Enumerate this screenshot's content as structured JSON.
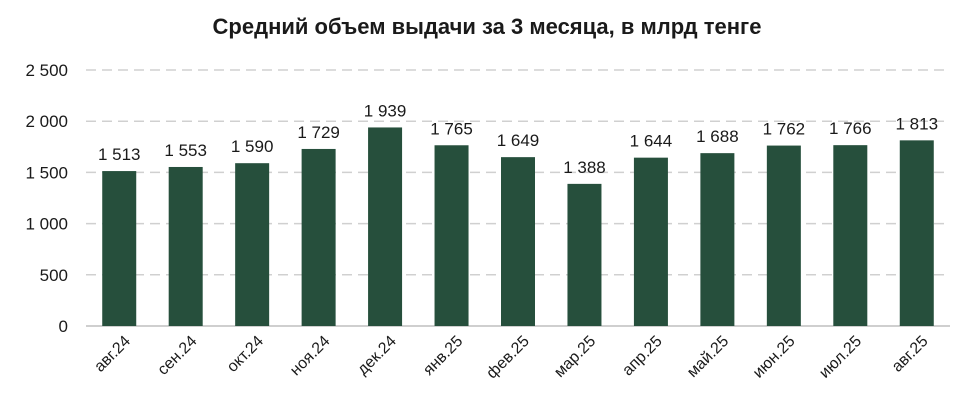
{
  "chart_data": {
    "type": "bar",
    "title": "Средний объем выдачи за 3 месяца, в млрд тенге",
    "categories": [
      "авг.24",
      "сен.24",
      "окт.24",
      "ноя.24",
      "дек.24",
      "янв.25",
      "фев.25",
      "мар.25",
      "апр.25",
      "май.25",
      "июн.25",
      "июл.25",
      "авг.25"
    ],
    "values": [
      1513,
      1553,
      1590,
      1729,
      1939,
      1765,
      1649,
      1388,
      1644,
      1688,
      1762,
      1766,
      1813
    ],
    "data_labels": [
      "1 513",
      "1 553",
      "1 590",
      "1 729",
      "1 939",
      "1 765",
      "1 649",
      "1 388",
      "1 644",
      "1 688",
      "1 762",
      "1 766",
      "1 813"
    ],
    "yticks": [
      0,
      500,
      1000,
      1500,
      2000,
      2500
    ],
    "ytick_labels": [
      "0",
      "500",
      "1 000",
      "1 500",
      "2 000",
      "2 500"
    ],
    "ylim": [
      0,
      2500
    ],
    "xlabel": "",
    "ylabel": "",
    "grid": true,
    "legend": "none",
    "bar_color": "#264f3c",
    "grid_color": "#d0d0d0",
    "text_color": "#1a1a1a"
  }
}
